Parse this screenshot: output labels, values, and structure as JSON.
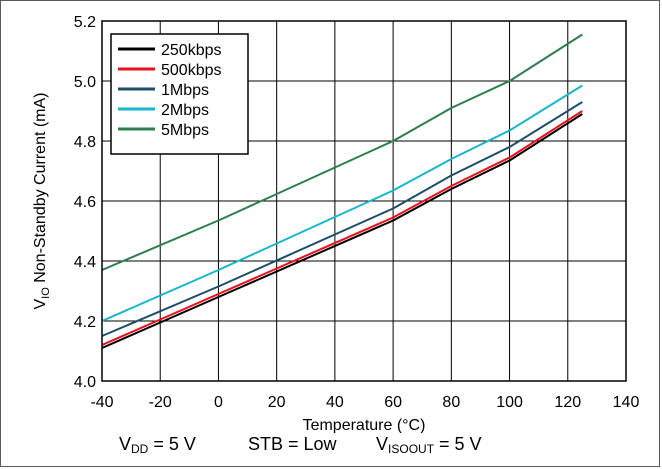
{
  "chart_data": {
    "type": "line",
    "title": "",
    "xlabel": "Temperature (°C)",
    "ylabel": {
      "prefix": "V",
      "sub": "IO",
      "suffix": " Non-Standby Current (mA)"
    },
    "xlim": [
      -40,
      140
    ],
    "ylim": [
      4.0,
      5.2
    ],
    "xticks": [
      -40,
      -20,
      0,
      20,
      40,
      60,
      80,
      100,
      120,
      140
    ],
    "yticks": [
      4.0,
      4.2,
      4.4,
      4.6,
      4.8,
      5.0,
      5.2
    ],
    "xtick_labels": [
      "-40",
      "-20",
      "0",
      "20",
      "40",
      "60",
      "80",
      "100",
      "120",
      "140"
    ],
    "ytick_labels": [
      "4.0",
      "4.2",
      "4.4",
      "4.6",
      "4.8",
      "5.0",
      "5.2"
    ],
    "grid": true,
    "legend_position": "top-left",
    "x": [
      -40,
      0,
      60,
      80,
      100,
      125
    ],
    "series": [
      {
        "name": "250kbps",
        "color": "#000000",
        "values": [
          4.11,
          4.28,
          4.535,
          4.64,
          4.735,
          4.89
        ]
      },
      {
        "name": "500kbps",
        "color": "#e8101c",
        "values": [
          4.12,
          4.29,
          4.545,
          4.65,
          4.745,
          4.9
        ]
      },
      {
        "name": "1Mbps",
        "color": "#1f4e6b",
        "values": [
          4.15,
          4.315,
          4.575,
          4.685,
          4.78,
          4.93
        ]
      },
      {
        "name": "2Mbps",
        "color": "#17b6cc",
        "values": [
          4.2,
          4.37,
          4.635,
          4.74,
          4.835,
          4.985
        ]
      },
      {
        "name": "5Mbps",
        "color": "#2e7d4f",
        "values": [
          4.37,
          4.535,
          4.8,
          4.91,
          5.0,
          5.155
        ]
      }
    ]
  },
  "conditions": [
    {
      "main": "V",
      "sub": "DD",
      "rest": " = 5 V"
    },
    {
      "main": "STB = Low",
      "sub": "",
      "rest": ""
    },
    {
      "main": "V",
      "sub": "ISOOUT",
      "rest": " = 5 V"
    }
  ]
}
